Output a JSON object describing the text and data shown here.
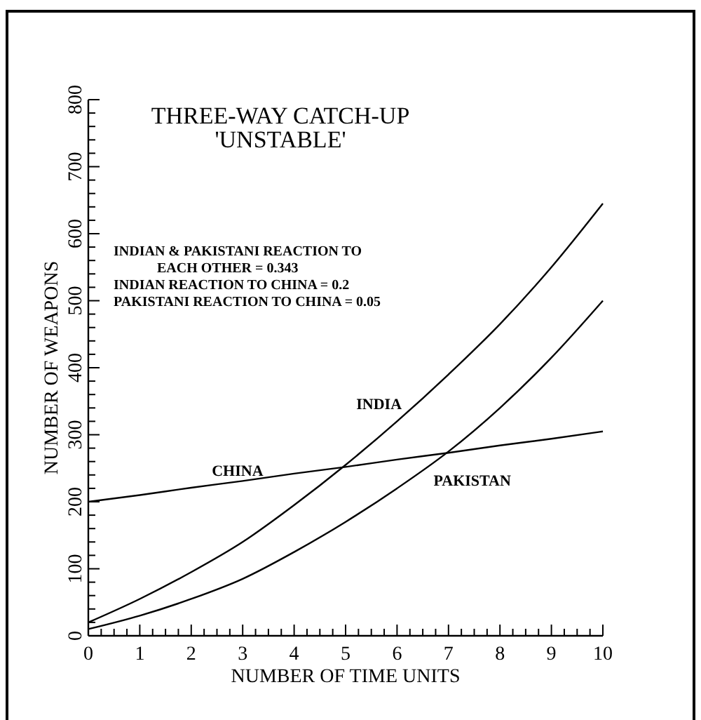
{
  "chart_data": {
    "type": "line",
    "title": "THREE-WAY CATCH-UP\n'UNSTABLE'",
    "xlabel": "NUMBER OF TIME UNITS",
    "ylabel": "NUMBER OF WEAPONS",
    "x": [
      0,
      1,
      2,
      3,
      4,
      5,
      6,
      7,
      8,
      9,
      10
    ],
    "series": [
      {
        "name": "INDIA",
        "color": "#000000",
        "values": [
          20,
          55,
          95,
          140,
          195,
          255,
          320,
          390,
          465,
          550,
          645
        ]
      },
      {
        "name": "CHINA",
        "color": "#000000",
        "values": [
          200,
          210,
          221,
          231,
          242,
          252,
          263,
          273,
          284,
          294,
          305
        ]
      },
      {
        "name": "PAKISTAN",
        "color": "#000000",
        "values": [
          10,
          30,
          55,
          85,
          125,
          170,
          220,
          275,
          340,
          415,
          500
        ]
      }
    ],
    "annotations": [
      "INDIAN & PAKISTANI REACTION TO\nEACH OTHER = 0.343",
      "INDIAN REACTION TO CHINA = 0.2",
      "PAKISTANI REACTION TO CHINA = 0.05"
    ],
    "xlim": [
      0,
      10
    ],
    "ylim": [
      0,
      800
    ],
    "xticks": [
      0,
      {
        "value": 0.25,
        "label": null
      },
      {
        "value": 0.5,
        "label": null
      },
      {
        "value": 0.75,
        "label": null
      },
      1,
      {
        "value": 1.25,
        "label": null
      },
      {
        "value": 1.5,
        "label": null
      },
      {
        "value": 1.75,
        "label": null
      },
      2,
      {
        "value": 2.25,
        "label": null
      },
      {
        "value": 2.5,
        "label": null
      },
      {
        "value": 2.75,
        "label": null
      },
      3,
      {
        "value": 3.25,
        "label": null
      },
      {
        "value": 3.5,
        "label": null
      },
      {
        "value": 3.75,
        "label": null
      },
      4,
      {
        "value": 4.25,
        "label": null
      },
      {
        "value": 4.5,
        "label": null
      },
      {
        "value": 4.75,
        "label": null
      },
      5,
      {
        "value": 5.25,
        "label": null
      },
      {
        "value": 5.5,
        "label": null
      },
      {
        "value": 5.75,
        "label": null
      },
      6,
      {
        "value": 6.25,
        "label": null
      },
      {
        "value": 6.5,
        "label": null
      },
      {
        "value": 6.75,
        "label": null
      },
      7,
      {
        "value": 7.25,
        "label": null
      },
      {
        "value": 7.5,
        "label": null
      },
      {
        "value": 7.75,
        "label": null
      },
      8,
      {
        "value": 8.25,
        "label": null
      },
      {
        "value": 8.5,
        "label": null
      },
      {
        "value": 8.75,
        "label": null
      },
      9,
      {
        "value": 9.25,
        "label": null
      },
      {
        "value": 9.5,
        "label": null
      },
      {
        "value": 9.75,
        "label": null
      },
      10
    ],
    "yticks": [
      0,
      {
        "value": 20,
        "label": null
      },
      {
        "value": 40,
        "label": null
      },
      {
        "value": 60,
        "label": null
      },
      {
        "value": 80,
        "label": null
      },
      100,
      {
        "value": 120,
        "label": null
      },
      {
        "value": 140,
        "label": null
      },
      {
        "value": 160,
        "label": null
      },
      {
        "value": 180,
        "label": null
      },
      200,
      {
        "value": 220,
        "label": null
      },
      {
        "value": 240,
        "label": null
      },
      {
        "value": 260,
        "label": null
      },
      {
        "value": 280,
        "label": null
      },
      300,
      {
        "value": 320,
        "label": null
      },
      {
        "value": 340,
        "label": null
      },
      {
        "value": 360,
        "label": null
      },
      {
        "value": 380,
        "label": null
      },
      400,
      {
        "value": 420,
        "label": null
      },
      {
        "value": 440,
        "label": null
      },
      {
        "value": 460,
        "label": null
      },
      {
        "value": 480,
        "label": null
      },
      500,
      {
        "value": 520,
        "label": null
      },
      {
        "value": 540,
        "label": null
      },
      {
        "value": 560,
        "label": null
      },
      {
        "value": 580,
        "label": null
      },
      600,
      {
        "value": 620,
        "label": null
      },
      {
        "value": 640,
        "label": null
      },
      {
        "value": 660,
        "label": null
      },
      {
        "value": 680,
        "label": null
      },
      700,
      {
        "value": 720,
        "label": null
      },
      {
        "value": 740,
        "label": null
      },
      {
        "value": 760,
        "label": null
      },
      {
        "value": 780,
        "label": null
      },
      800
    ],
    "grid": false,
    "marker": "none",
    "line_style": "solid"
  }
}
